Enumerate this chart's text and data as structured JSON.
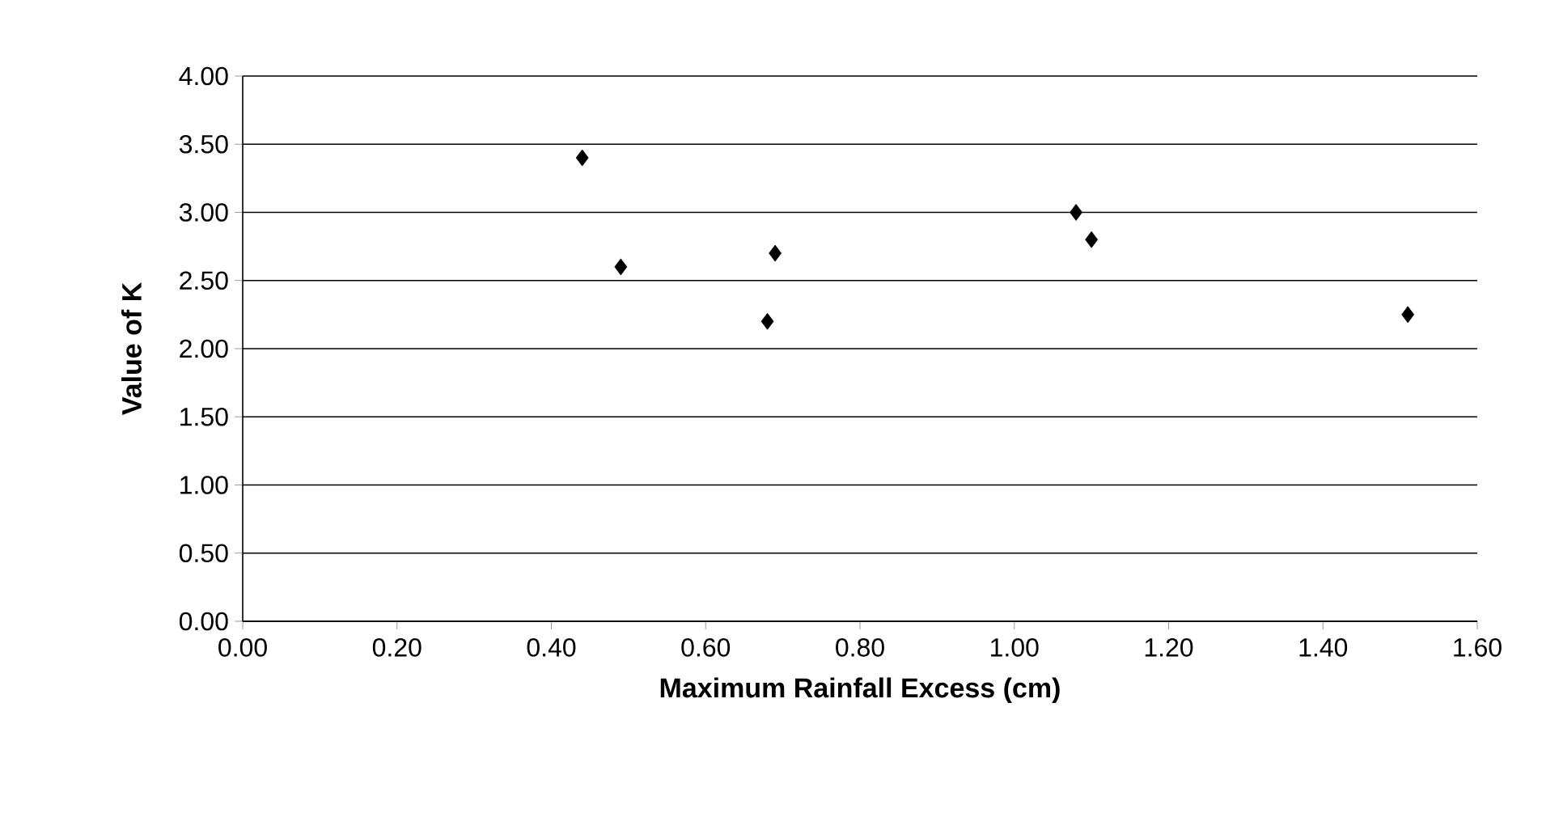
{
  "chart_data": {
    "type": "scatter",
    "xlabel": "Maximum Rainfall Excess (cm)",
    "ylabel": "Value of K",
    "series": [
      {
        "color": "#000000",
        "x": [
          0.44,
          0.49,
          0.68,
          0.69,
          1.08,
          1.1,
          1.51
        ],
        "values": [
          3.4,
          2.6,
          2.2,
          2.7,
          3.0,
          2.8,
          2.25
        ]
      }
    ],
    "xlim": [
      0,
      1.6
    ],
    "ylim": [
      0,
      4
    ],
    "xticks": [
      {
        "value": 0,
        "label": "0.00"
      },
      {
        "value": 0.2,
        "label": "0.20"
      },
      {
        "value": 0.4,
        "label": "0.40"
      },
      {
        "value": 0.6,
        "label": "0.60"
      },
      {
        "value": 0.8,
        "label": "0.80"
      },
      {
        "value": 1.0,
        "label": "1.00"
      },
      {
        "value": 1.2,
        "label": "1.20"
      },
      {
        "value": 1.4,
        "label": "1.40"
      },
      {
        "value": 1.6,
        "label": "1.60"
      }
    ],
    "yticks": [
      {
        "value": 0,
        "label": "0.00"
      },
      {
        "value": 0.5,
        "label": "0.50"
      },
      {
        "value": 1.0,
        "label": "1.00"
      },
      {
        "value": 1.5,
        "label": "1.50"
      },
      {
        "value": 2.0,
        "label": "2.00"
      },
      {
        "value": 2.5,
        "label": "2.50"
      },
      {
        "value": 3.0,
        "label": "3.00"
      },
      {
        "value": 3.5,
        "label": "3.50"
      },
      {
        "value": 4.0,
        "label": "4.00"
      }
    ],
    "grid": "y",
    "marker": "diamond"
  }
}
